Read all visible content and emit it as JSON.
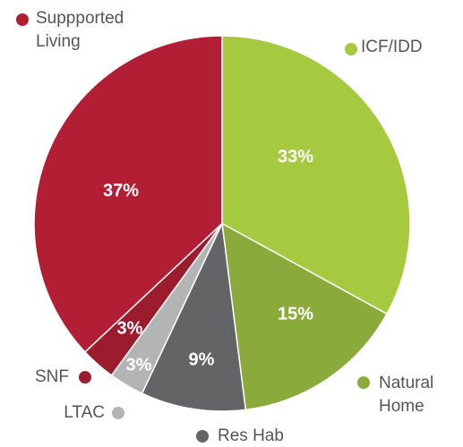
{
  "chart_data": {
    "type": "pie",
    "categories": [
      "ICF/IDD",
      "Natural Home",
      "Res Hab",
      "LTAC",
      "SNF",
      "Suppported Living"
    ],
    "values": [
      33,
      15,
      9,
      3,
      3,
      37
    ],
    "value_labels": [
      "33%",
      "15%",
      "9%",
      "3%",
      "3%",
      "37%"
    ],
    "colors": [
      "#a5c93f",
      "#8aab3b",
      "#636466",
      "#b3b4b6",
      "#9b1c2c",
      "#b21f35"
    ]
  }
}
